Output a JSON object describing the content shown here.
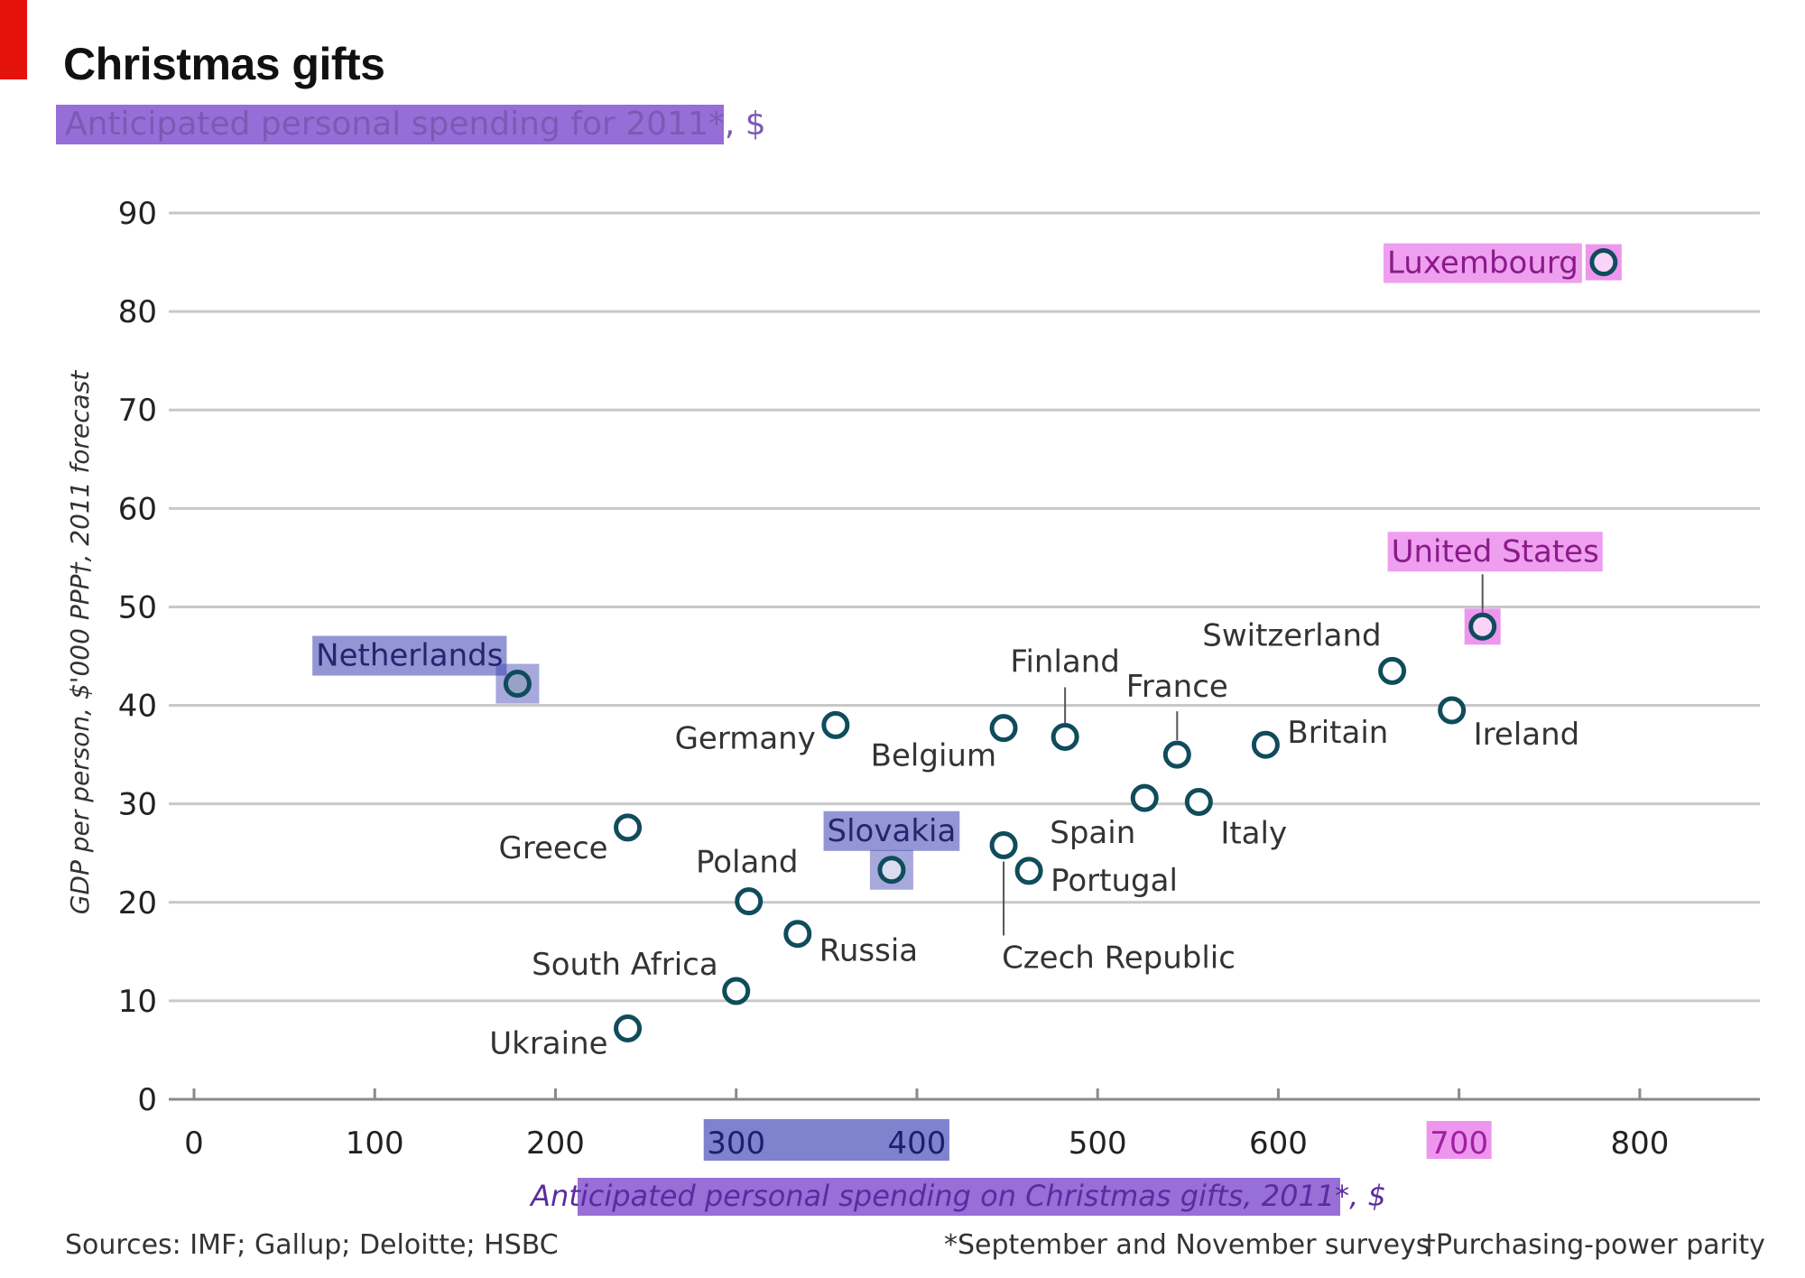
{
  "header": {
    "title": "Christmas gifts",
    "subtitle": "Anticipated personal spending for 2011*, $"
  },
  "footer": {
    "sources": "Sources: IMF; Gallup; Deloitte; HSBC",
    "note1": "*September and November surveys",
    "note2": "†Purchasing-power parity"
  },
  "colors": {
    "marker": "#0f4c5c",
    "grid": "#c8c8c8",
    "highlight_pink": "#e040e0",
    "highlight_blue": "#3b3fb0"
  },
  "chart_data": {
    "type": "scatter",
    "xlabel": "Anticipated personal spending on Christmas gifts, 2011*, $",
    "ylabel": "GDP per person, $'000 PPP†, 2011 forecast",
    "xlim": [
      0,
      840
    ],
    "ylim": [
      0,
      90
    ],
    "xticks": [
      0,
      100,
      200,
      300,
      400,
      500,
      600,
      700,
      800
    ],
    "yticks": [
      0,
      10,
      20,
      30,
      40,
      50,
      60,
      70,
      80,
      90
    ],
    "grid": true,
    "points": [
      {
        "label": "Luxembourg",
        "x": 780,
        "y": 85
      },
      {
        "label": "United States",
        "x": 713,
        "y": 48
      },
      {
        "label": "Switzerland",
        "x": 663,
        "y": 43.5
      },
      {
        "label": "Ireland",
        "x": 696,
        "y": 39.5
      },
      {
        "label": "Britain",
        "x": 593,
        "y": 36
      },
      {
        "label": "France",
        "x": 544,
        "y": 35
      },
      {
        "label": "Finland",
        "x": 482,
        "y": 36.8
      },
      {
        "label": "Italy",
        "x": 556,
        "y": 30.2
      },
      {
        "label": "Spain",
        "x": 526,
        "y": 30.6
      },
      {
        "label": "Belgium",
        "x": 448,
        "y": 37.7
      },
      {
        "label": "Portugal",
        "x": 462,
        "y": 23.2
      },
      {
        "label": "Czech Republic",
        "x": 448,
        "y": 25.8
      },
      {
        "label": "Slovakia",
        "x": 386,
        "y": 23.3
      },
      {
        "label": "Germany",
        "x": 355,
        "y": 38
      },
      {
        "label": "Netherlands",
        "x": 179,
        "y": 42.2
      },
      {
        "label": "Greece",
        "x": 240,
        "y": 27.6
      },
      {
        "label": "Poland",
        "x": 307,
        "y": 20.1
      },
      {
        "label": "Russia",
        "x": 334,
        "y": 16.8
      },
      {
        "label": "South Africa",
        "x": 300,
        "y": 11
      },
      {
        "label": "Ukraine",
        "x": 240,
        "y": 7.2
      }
    ]
  }
}
